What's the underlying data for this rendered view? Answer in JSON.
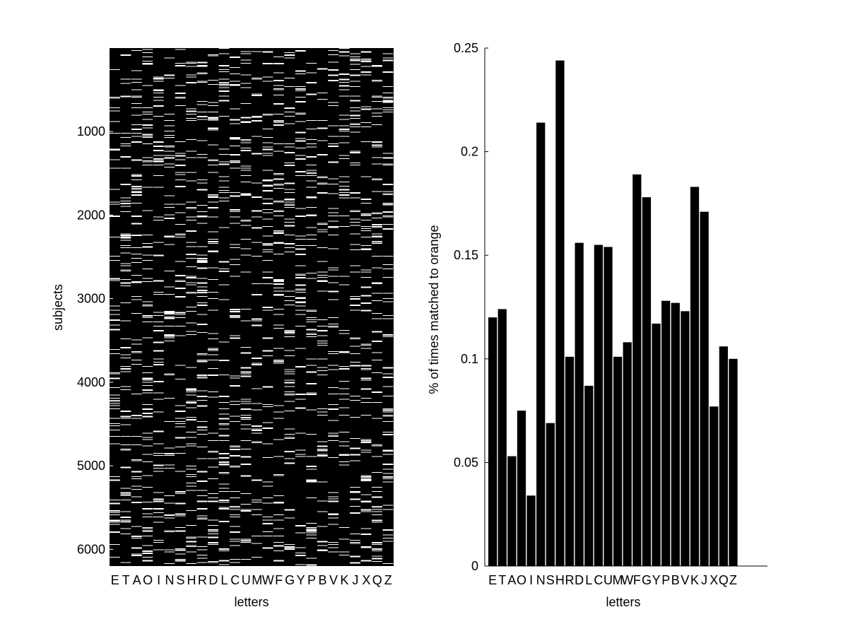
{
  "chart_data": [
    {
      "type": "heatmap",
      "xlabel": "letters",
      "ylabel": "subjects",
      "x_categories": [
        "E",
        "T",
        "A",
        "O",
        "I",
        "N",
        "S",
        "H",
        "R",
        "D",
        "L",
        "C",
        "U",
        "M",
        "W",
        "F",
        "G",
        "Y",
        "P",
        "B",
        "V",
        "K",
        "J",
        "X",
        "Q",
        "Z"
      ],
      "yticks": [
        1000,
        2000,
        3000,
        4000,
        5000,
        6000
      ],
      "ylim": [
        1,
        6200
      ],
      "y_direction": "top-to-bottom",
      "color_scale": [
        "#000000",
        "#ffffff"
      ],
      "binary_values": true,
      "grid": false
    },
    {
      "type": "bar",
      "xlabel": "letters",
      "ylabel": "% of times matched to orange",
      "categories": [
        "E",
        "T",
        "A",
        "O",
        "I",
        "N",
        "S",
        "H",
        "R",
        "D",
        "L",
        "C",
        "U",
        "M",
        "W",
        "F",
        "G",
        "Y",
        "P",
        "B",
        "V",
        "K",
        "J",
        "X",
        "Q",
        "Z"
      ],
      "values": [
        0.12,
        0.124,
        0.053,
        0.075,
        0.034,
        0.214,
        0.069,
        0.244,
        0.101,
        0.156,
        0.087,
        0.155,
        0.154,
        0.101,
        0.108,
        0.189,
        0.178,
        0.117,
        0.128,
        0.127,
        0.123,
        0.183,
        0.171,
        0.077,
        0.106,
        0.1
      ],
      "ylim": [
        0,
        0.25
      ],
      "yticks": [
        "0",
        "0.05",
        "0.1",
        "0.15",
        "0.2",
        "0.25"
      ],
      "bar_color": "#000000",
      "grid": false
    }
  ]
}
